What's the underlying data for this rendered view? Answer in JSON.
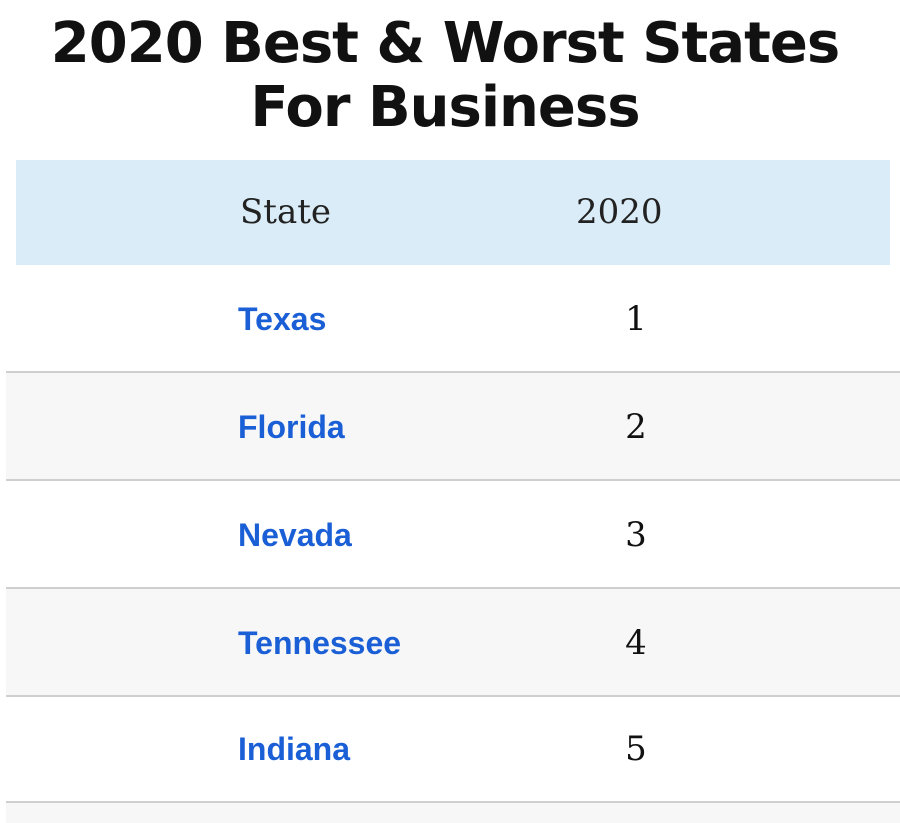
{
  "title": {
    "line1": "2020 Best & Worst States",
    "line2": "For Business"
  },
  "table": {
    "headers": {
      "state": "State",
      "year": "2020"
    },
    "rows": [
      {
        "state": "Texas",
        "rank": "1"
      },
      {
        "state": "Florida",
        "rank": "2"
      },
      {
        "state": "Nevada",
        "rank": "3"
      },
      {
        "state": "Tennessee",
        "rank": "4"
      },
      {
        "state": "Indiana",
        "rank": "5"
      }
    ]
  },
  "colors": {
    "header_bg": "#d9ecf7",
    "link": "#1a5fd6",
    "alt_row_bg": "#f7f7f7"
  }
}
